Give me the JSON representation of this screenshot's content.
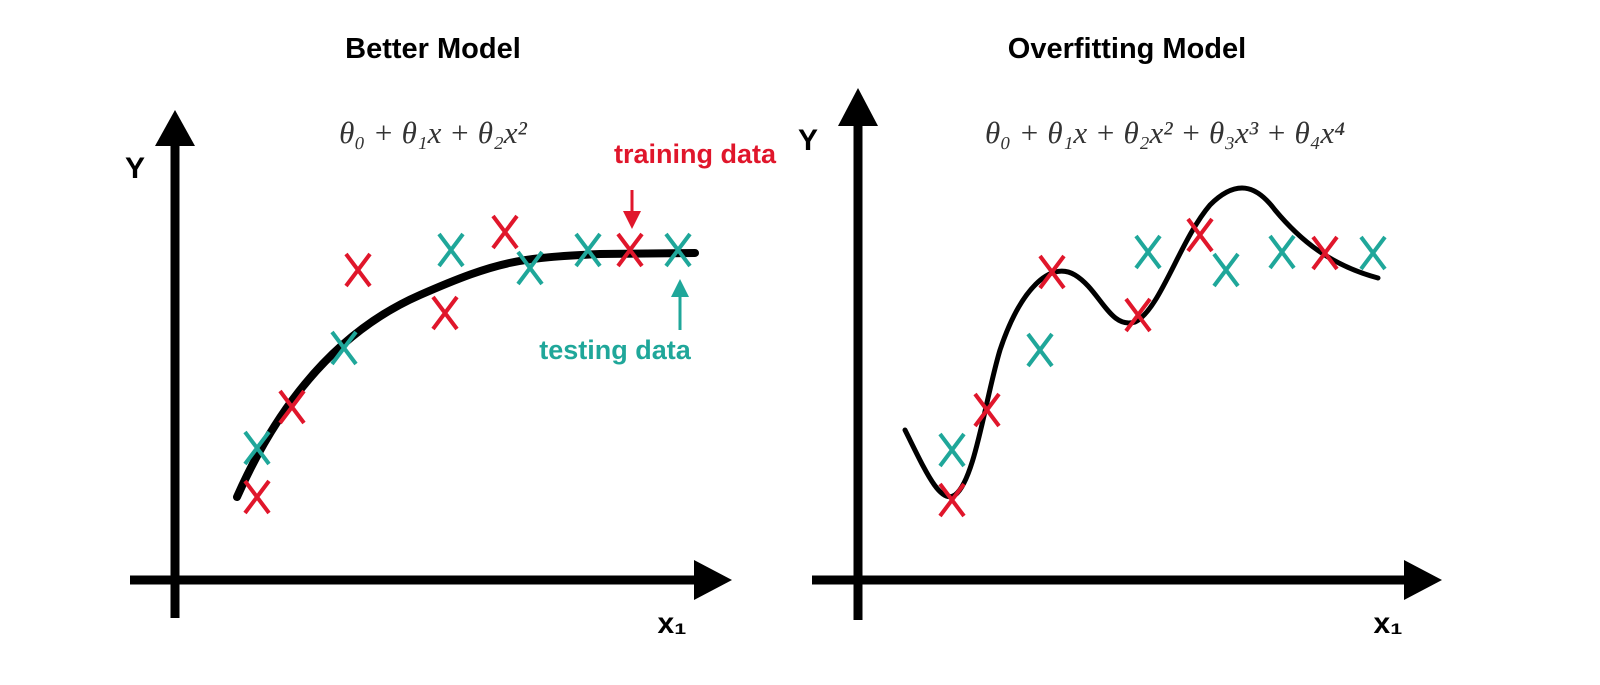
{
  "panels": [
    {
      "title": "Better Model",
      "formula": "θ₀ + θ₁x + θ₂x²",
      "y_label": "Y",
      "x_label": "x₁",
      "annotations": {
        "training": "training data",
        "testing": "testing data"
      }
    },
    {
      "title": "Overfitting Model",
      "formula": "θ₀ + θ₁x + θ₂x² + θ₃x³ + θ₄x⁴",
      "y_label": "Y",
      "x_label": "x₁"
    }
  ]
}
